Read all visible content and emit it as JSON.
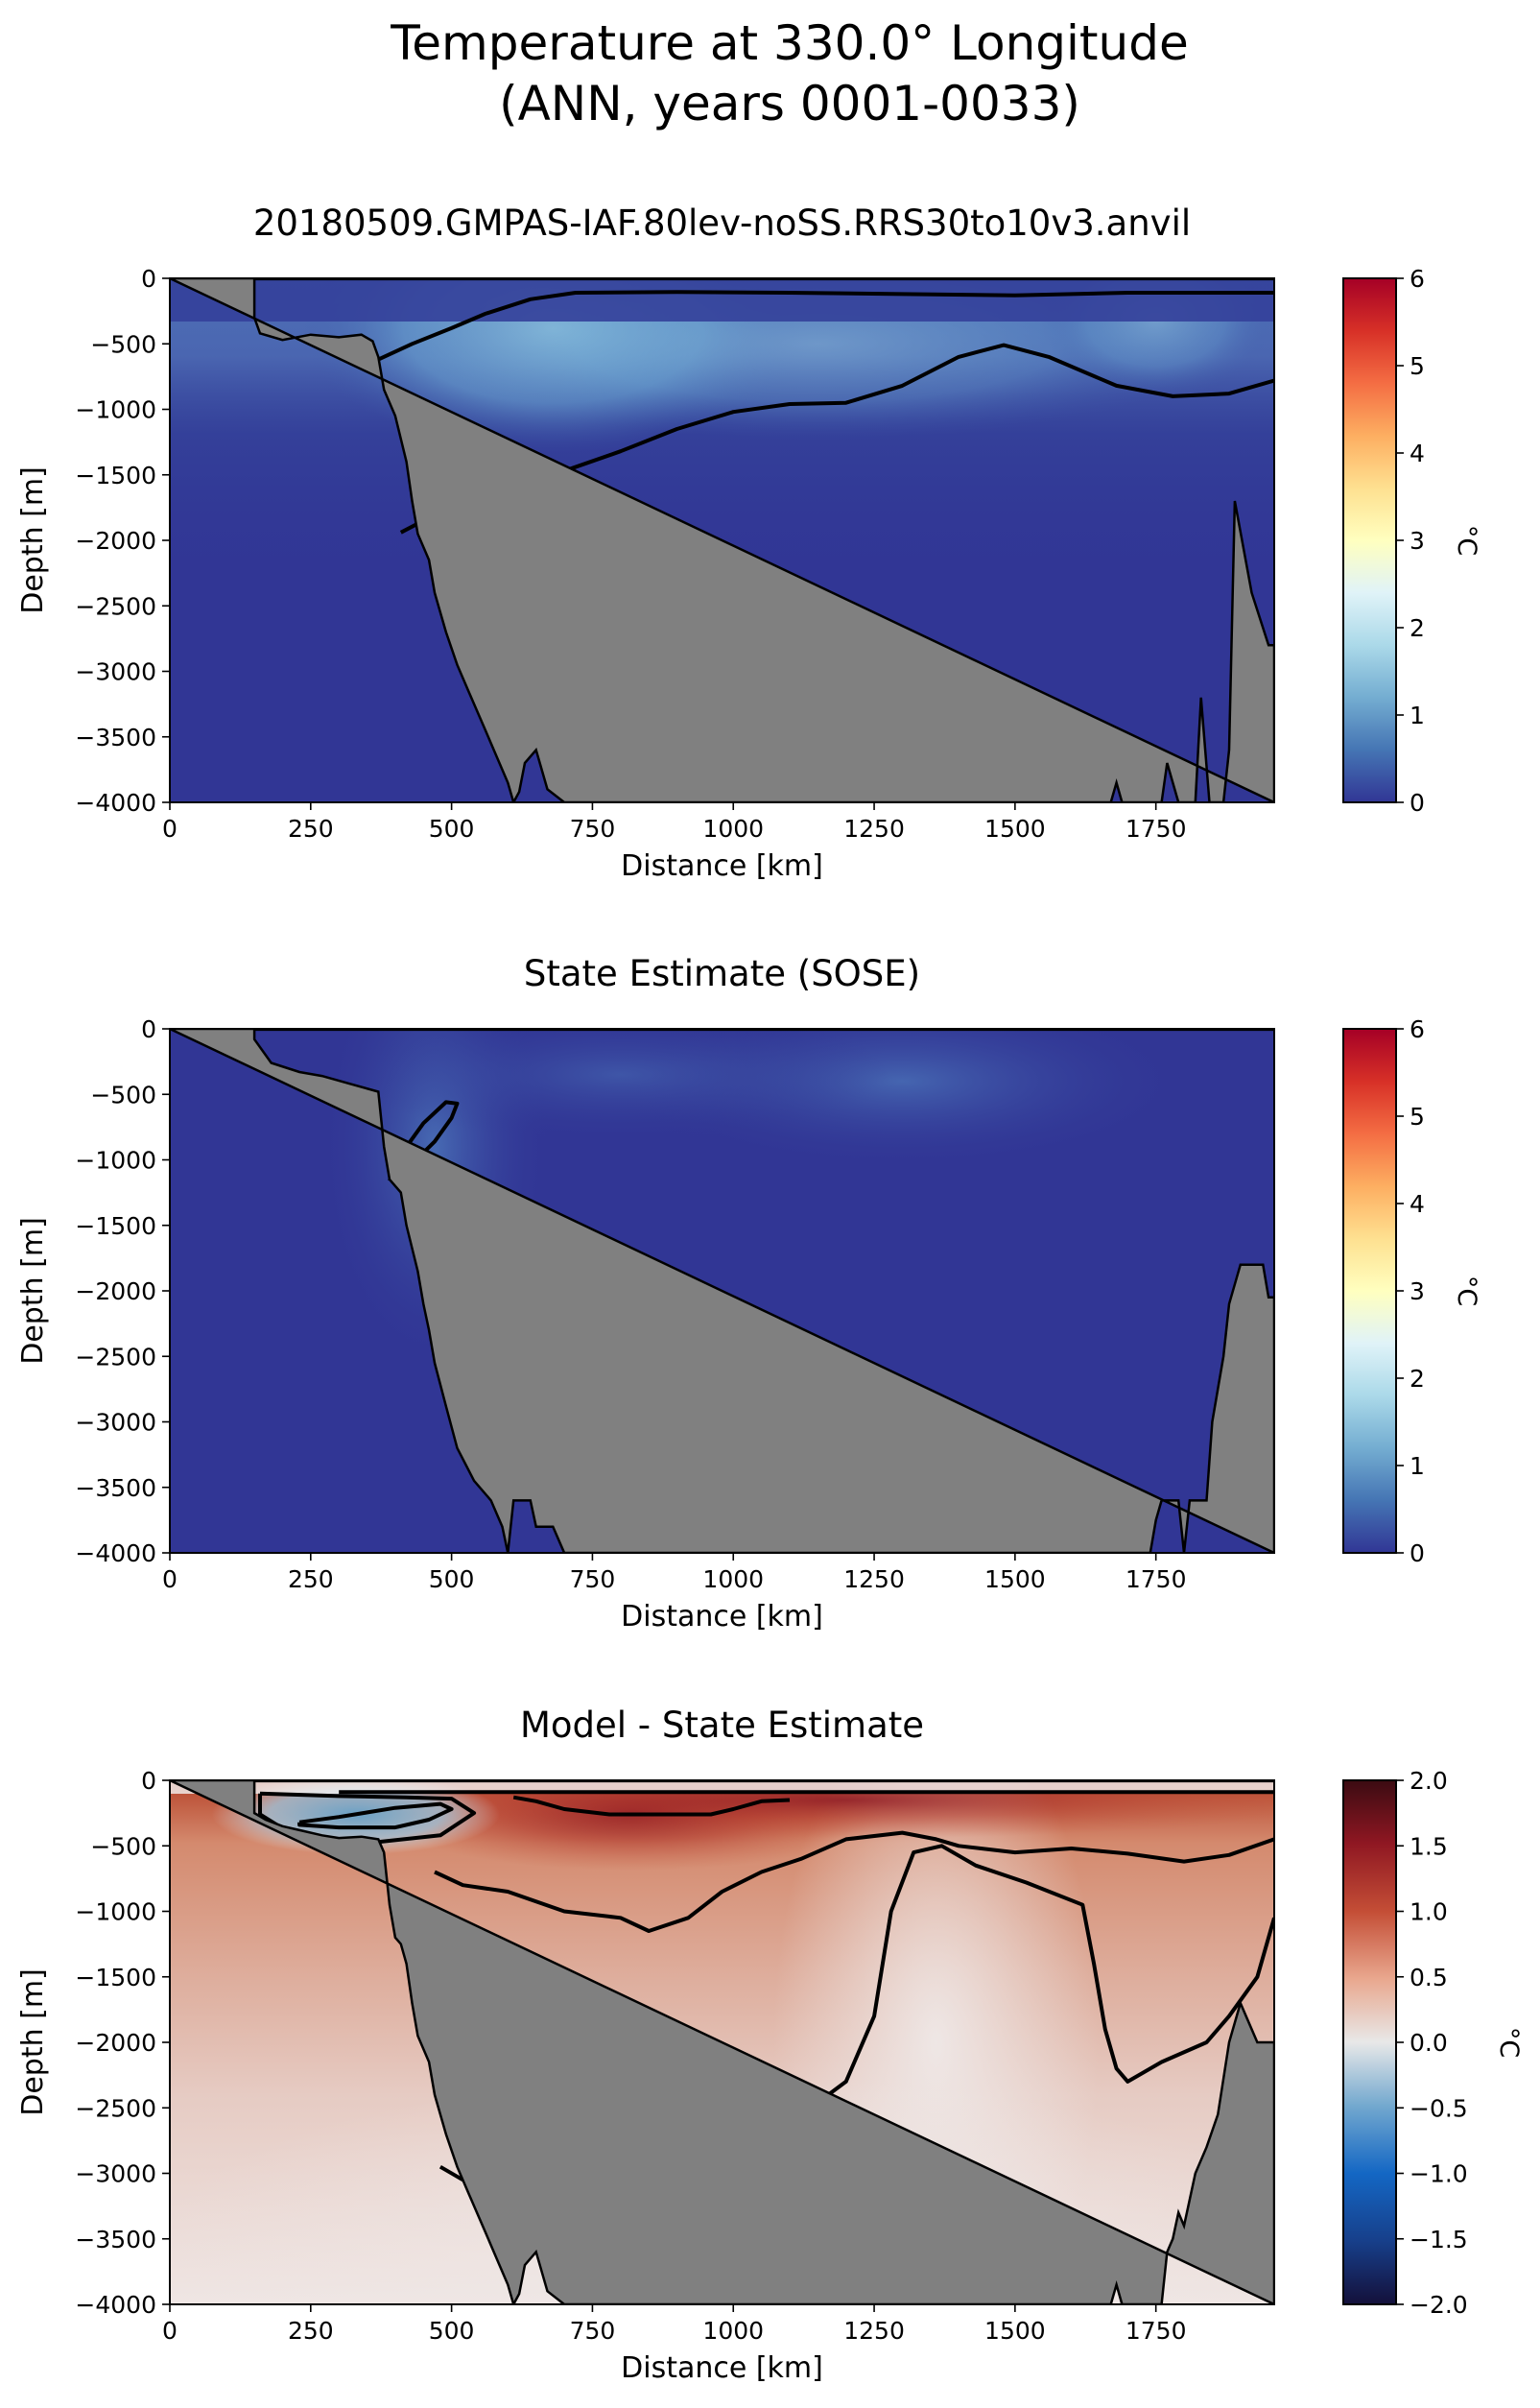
{
  "suptitle": [
    "Temperature at 330.0° Longitude",
    "(ANN, years 0001-0033)"
  ],
  "chart_data": [
    {
      "type": "heatmap",
      "title": "20180509.GMPAS-IAF.80lev-noSS.RRS30to10v3.anvil",
      "xlabel": "Distance [km]",
      "ylabel": "Depth [m]",
      "xlim": [
        0,
        1960
      ],
      "ylim": [
        -4000,
        0
      ],
      "xticks": [
        0,
        250,
        500,
        750,
        1000,
        1250,
        1500,
        1750
      ],
      "yticks": [
        0,
        -500,
        -1000,
        -1500,
        -2000,
        -2500,
        -3000,
        -3500,
        -4000
      ],
      "colorbar": {
        "label": "°C",
        "colormap": "RdYlBu_r",
        "min": 0,
        "max": 6,
        "ticks": [
          0,
          1,
          2,
          3,
          4,
          5,
          6
        ]
      },
      "approx_field": {
        "surface_layer_min": 0.2,
        "warm_core_max": 1.1,
        "warm_core_depth": [
          -150,
          -700
        ],
        "deep_value": 0.1
      },
      "contours": [
        {
          "points": [
            [
              370,
              -620
            ],
            [
              430,
              -500
            ],
            [
              500,
              -380
            ],
            [
              560,
              -270
            ],
            [
              640,
              -160
            ],
            [
              720,
              -110
            ],
            [
              900,
              -105
            ],
            [
              1100,
              -110
            ],
            [
              1300,
              -120
            ],
            [
              1500,
              -130
            ],
            [
              1700,
              -110
            ],
            [
              1960,
              -110
            ]
          ]
        },
        {
          "points": [
            [
              410,
              -1940
            ],
            [
              450,
              -1850
            ],
            [
              520,
              -1650
            ],
            [
              600,
              -1550
            ],
            [
              700,
              -1470
            ],
            [
              800,
              -1320
            ],
            [
              900,
              -1150
            ],
            [
              1000,
              -1020
            ],
            [
              1100,
              -960
            ],
            [
              1200,
              -950
            ],
            [
              1300,
              -820
            ],
            [
              1400,
              -600
            ],
            [
              1480,
              -510
            ],
            [
              1560,
              -600
            ],
            [
              1680,
              -820
            ],
            [
              1780,
              -900
            ],
            [
              1880,
              -880
            ],
            [
              1960,
              -780
            ]
          ]
        }
      ],
      "bathymetry": [
        [
          0,
          0
        ],
        [
          150,
          0
        ],
        [
          150,
          -300
        ],
        [
          160,
          -420
        ],
        [
          200,
          -470
        ],
        [
          250,
          -430
        ],
        [
          300,
          -450
        ],
        [
          340,
          -430
        ],
        [
          360,
          -480
        ],
        [
          370,
          -600
        ],
        [
          380,
          -850
        ],
        [
          400,
          -1050
        ],
        [
          420,
          -1400
        ],
        [
          430,
          -1700
        ],
        [
          440,
          -1950
        ],
        [
          460,
          -2150
        ],
        [
          470,
          -2400
        ],
        [
          490,
          -2700
        ],
        [
          510,
          -2950
        ],
        [
          530,
          -3150
        ],
        [
          560,
          -3450
        ],
        [
          580,
          -3650
        ],
        [
          600,
          -3850
        ],
        [
          610,
          -4000
        ],
        [
          620,
          -3920
        ],
        [
          630,
          -3700
        ],
        [
          650,
          -3600
        ],
        [
          670,
          -3900
        ],
        [
          700,
          -4000
        ],
        [
          1670,
          -4000
        ],
        [
          1680,
          -3850
        ],
        [
          1690,
          -4000
        ],
        [
          1760,
          -4000
        ],
        [
          1770,
          -3700
        ],
        [
          1790,
          -4000
        ],
        [
          1820,
          -4000
        ],
        [
          1830,
          -3200
        ],
        [
          1845,
          -4000
        ],
        [
          1870,
          -4000
        ],
        [
          1880,
          -3600
        ],
        [
          1890,
          -1700
        ],
        [
          1920,
          -2400
        ],
        [
          1950,
          -2800
        ],
        [
          1960,
          -2800
        ],
        [
          1960,
          -4000
        ]
      ]
    },
    {
      "type": "heatmap",
      "title": "State Estimate (SOSE)",
      "xlabel": "Distance [km]",
      "ylabel": "Depth [m]",
      "xlim": [
        0,
        1960
      ],
      "ylim": [
        -4000,
        0
      ],
      "xticks": [
        0,
        250,
        500,
        750,
        1000,
        1250,
        1500,
        1750
      ],
      "yticks": [
        0,
        -500,
        -1000,
        -1500,
        -2000,
        -2500,
        -3000,
        -3500,
        -4000
      ],
      "colorbar": {
        "label": "°C",
        "colormap": "RdYlBu_r",
        "min": 0,
        "max": 6,
        "ticks": [
          0,
          1,
          2,
          3,
          4,
          5,
          6
        ]
      },
      "approx_field": {
        "surface_layer_min": 0.0,
        "warm_core_max": 0.6,
        "warm_core_depth": [
          -150,
          -600
        ],
        "deep_value": 0.0
      },
      "contours": [
        {
          "points": [
            [
              390,
              -1160
            ],
            [
              400,
              -1050
            ],
            [
              420,
              -900
            ],
            [
              450,
              -720
            ],
            [
              490,
              -560
            ],
            [
              510,
              -570
            ],
            [
              500,
              -680
            ],
            [
              470,
              -860
            ],
            [
              430,
              -1030
            ],
            [
              390,
              -1160
            ]
          ]
        }
      ],
      "bathymetry": [
        [
          0,
          0
        ],
        [
          150,
          0
        ],
        [
          150,
          -80
        ],
        [
          180,
          -260
        ],
        [
          230,
          -330
        ],
        [
          270,
          -360
        ],
        [
          320,
          -420
        ],
        [
          370,
          -480
        ],
        [
          380,
          -900
        ],
        [
          390,
          -1150
        ],
        [
          410,
          -1250
        ],
        [
          420,
          -1500
        ],
        [
          440,
          -1850
        ],
        [
          450,
          -2100
        ],
        [
          460,
          -2300
        ],
        [
          470,
          -2550
        ],
        [
          490,
          -2880
        ],
        [
          510,
          -3200
        ],
        [
          540,
          -3450
        ],
        [
          570,
          -3600
        ],
        [
          590,
          -3800
        ],
        [
          600,
          -4000
        ],
        [
          610,
          -3600
        ],
        [
          640,
          -3600
        ],
        [
          650,
          -3800
        ],
        [
          680,
          -3800
        ],
        [
          700,
          -4000
        ],
        [
          1740,
          -4000
        ],
        [
          1750,
          -3750
        ],
        [
          1760,
          -3600
        ],
        [
          1790,
          -3600
        ],
        [
          1800,
          -4000
        ],
        [
          1810,
          -3600
        ],
        [
          1840,
          -3600
        ],
        [
          1850,
          -3000
        ],
        [
          1870,
          -2500
        ],
        [
          1880,
          -2100
        ],
        [
          1900,
          -1800
        ],
        [
          1940,
          -1800
        ],
        [
          1950,
          -2050
        ],
        [
          1960,
          -2050
        ],
        [
          1960,
          -4000
        ]
      ]
    },
    {
      "type": "heatmap",
      "title": "Model - State Estimate",
      "xlabel": "Distance [km]",
      "ylabel": "Depth [m]",
      "xlim": [
        0,
        1960
      ],
      "ylim": [
        -4000,
        0
      ],
      "xticks": [
        0,
        250,
        500,
        750,
        1000,
        1250,
        1500,
        1750
      ],
      "yticks": [
        0,
        -500,
        -1000,
        -1500,
        -2000,
        -2500,
        -3000,
        -3500,
        -4000
      ],
      "colorbar": {
        "label": "°C",
        "colormap": "RdBu_r",
        "min": -2.0,
        "max": 2.0,
        "ticks": [
          -2.0,
          -1.5,
          -1.0,
          -0.5,
          0.0,
          0.5,
          1.0,
          1.5,
          2.0
        ]
      },
      "approx_field": {
        "cold_patch_min": -0.8,
        "surface_max": 1.6,
        "mid_depth_value": 0.4,
        "deep_value": 0.1
      },
      "contours": [
        {
          "points": [
            [
              230,
              -320
            ],
            [
              300,
              -280
            ],
            [
              400,
              -210
            ],
            [
              480,
              -180
            ],
            [
              500,
              -220
            ],
            [
              460,
              -300
            ],
            [
              400,
              -360
            ],
            [
              300,
              -360
            ],
            [
              230,
              -340
            ],
            [
              230,
              -320
            ]
          ]
        },
        {
          "points": [
            [
              160,
              -100
            ],
            [
              300,
              -120
            ],
            [
              420,
              -130
            ],
            [
              500,
              -140
            ],
            [
              540,
              -250
            ],
            [
              480,
              -420
            ],
            [
              350,
              -480
            ],
            [
              220,
              -420
            ],
            [
              160,
              -260
            ],
            [
              160,
              -100
            ]
          ]
        },
        {
          "points": [
            [
              300,
              -90
            ],
            [
              1960,
              -90
            ]
          ]
        },
        {
          "points": [
            [
              610,
              -130
            ],
            [
              650,
              -160
            ],
            [
              700,
              -220
            ],
            [
              780,
              -260
            ],
            [
              880,
              -260
            ],
            [
              960,
              -260
            ],
            [
              1000,
              -220
            ],
            [
              1050,
              -160
            ],
            [
              1100,
              -150
            ]
          ]
        },
        {
          "points": [
            [
              470,
              -700
            ],
            [
              520,
              -800
            ],
            [
              600,
              -850
            ],
            [
              700,
              -1000
            ],
            [
              800,
              -1050
            ],
            [
              850,
              -1150
            ],
            [
              920,
              -1050
            ],
            [
              980,
              -850
            ],
            [
              1050,
              -700
            ],
            [
              1120,
              -600
            ],
            [
              1200,
              -450
            ],
            [
              1300,
              -400
            ],
            [
              1360,
              -450
            ],
            [
              1400,
              -500
            ],
            [
              1500,
              -550
            ],
            [
              1600,
              -520
            ],
            [
              1700,
              -560
            ],
            [
              1800,
              -620
            ],
            [
              1880,
              -570
            ],
            [
              1960,
              -450
            ]
          ]
        },
        {
          "points": [
            [
              480,
              -2950
            ],
            [
              520,
              -3050
            ],
            [
              580,
              -3100
            ],
            [
              640,
              -3170
            ],
            [
              720,
              -3200
            ],
            [
              800,
              -3100
            ],
            [
              900,
              -2900
            ],
            [
              1000,
              -2700
            ],
            [
              1100,
              -2620
            ],
            [
              1200,
              -2300
            ],
            [
              1250,
              -1800
            ],
            [
              1280,
              -1000
            ],
            [
              1320,
              -550
            ],
            [
              1370,
              -500
            ],
            [
              1430,
              -650
            ],
            [
              1520,
              -780
            ],
            [
              1620,
              -950
            ],
            [
              1640,
              -1400
            ],
            [
              1660,
              -1900
            ],
            [
              1680,
              -2200
            ],
            [
              1700,
              -2300
            ],
            [
              1760,
              -2150
            ],
            [
              1840,
              -2000
            ],
            [
              1880,
              -1800
            ],
            [
              1930,
              -1500
            ],
            [
              1960,
              -1050
            ]
          ]
        }
      ],
      "bathymetry": [
        [
          0,
          0
        ],
        [
          150,
          0
        ],
        [
          150,
          -250
        ],
        [
          170,
          -300
        ],
        [
          200,
          -350
        ],
        [
          230,
          -380
        ],
        [
          270,
          -420
        ],
        [
          300,
          -440
        ],
        [
          340,
          -430
        ],
        [
          370,
          -450
        ],
        [
          380,
          -550
        ],
        [
          390,
          -950
        ],
        [
          400,
          -1200
        ],
        [
          410,
          -1250
        ],
        [
          420,
          -1400
        ],
        [
          430,
          -1700
        ],
        [
          440,
          -1950
        ],
        [
          460,
          -2150
        ],
        [
          470,
          -2400
        ],
        [
          490,
          -2700
        ],
        [
          510,
          -2950
        ],
        [
          530,
          -3150
        ],
        [
          560,
          -3450
        ],
        [
          580,
          -3650
        ],
        [
          600,
          -3850
        ],
        [
          610,
          -4000
        ],
        [
          620,
          -3920
        ],
        [
          630,
          -3700
        ],
        [
          650,
          -3600
        ],
        [
          670,
          -3900
        ],
        [
          700,
          -4000
        ],
        [
          1670,
          -4000
        ],
        [
          1680,
          -3850
        ],
        [
          1690,
          -4000
        ],
        [
          1760,
          -4000
        ],
        [
          1770,
          -3600
        ],
        [
          1780,
          -3500
        ],
        [
          1790,
          -3300
        ],
        [
          1800,
          -3400
        ],
        [
          1820,
          -3000
        ],
        [
          1840,
          -2800
        ],
        [
          1860,
          -2550
        ],
        [
          1880,
          -2000
        ],
        [
          1900,
          -1700
        ],
        [
          1930,
          -2000
        ],
        [
          1960,
          -2000
        ],
        [
          1960,
          -4000
        ]
      ]
    }
  ]
}
